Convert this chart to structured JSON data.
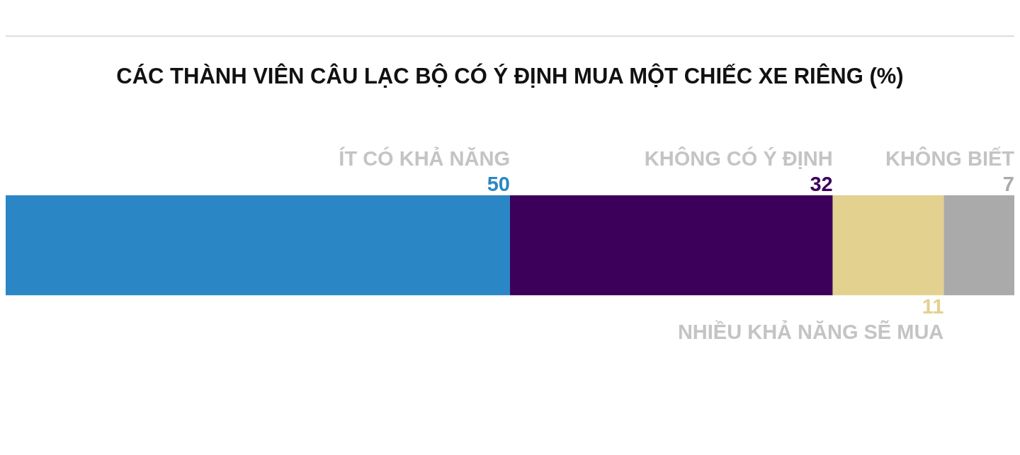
{
  "chart_data": {
    "type": "bar",
    "orientation": "horizontal",
    "stacked": true,
    "title": "CÁC THÀNH VIÊN CÂU LẠC BỘ CÓ Ý ĐỊNH MUA MỘT CHIẾC XE RIÊNG (%)",
    "categories": [
      null
    ],
    "grid": false,
    "legend": false,
    "data_labels": true,
    "series": [
      {
        "name": "ÍT CÓ KHẢ NĂNG",
        "color": "#2b86c5",
        "values": [
          50
        ]
      },
      {
        "name": "KHÔNG CÓ Ý ĐỊNH",
        "color": "#3d005a",
        "values": [
          32
        ]
      },
      {
        "name": "NHIỀU KHẢ NĂNG SẼ MUA",
        "color": "#e3d18f",
        "values": [
          11
        ]
      },
      {
        "name": "KHÔNG BIẾT",
        "color": "#aaaaaa",
        "values": [
          7
        ]
      }
    ]
  }
}
